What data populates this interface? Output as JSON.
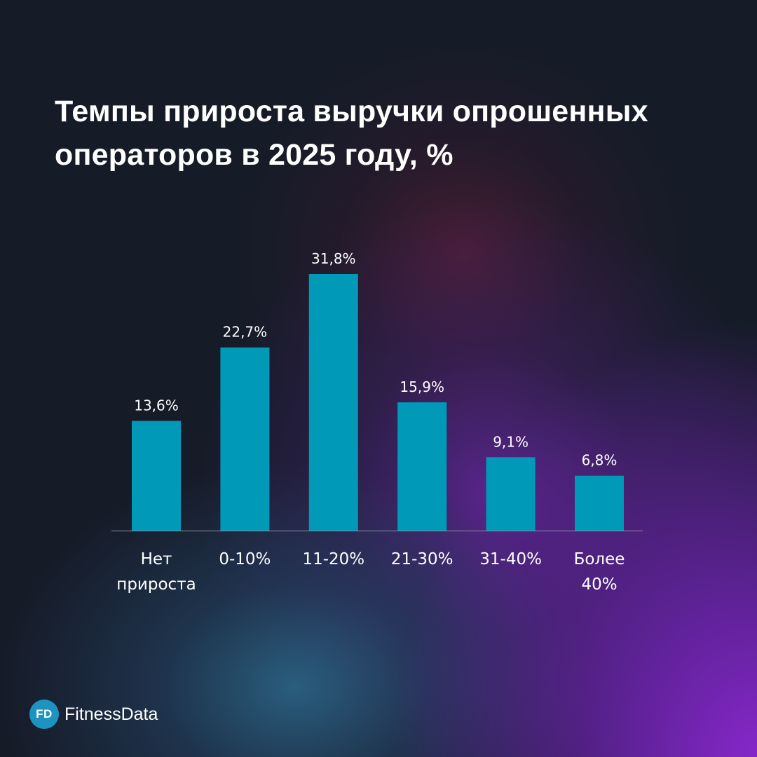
{
  "title_lines": [
    "Темпы прироста выручки опрошенных",
    "операторов в 2025 году, %"
  ],
  "chart_data": {
    "type": "bar",
    "title": "Темпы прироста выручки опрошенных операторов в 2025 году, %",
    "categories": [
      [
        "Нет",
        "прироста"
      ],
      [
        "0-10%"
      ],
      [
        "11-20%"
      ],
      [
        "21-30%"
      ],
      [
        "31-40%"
      ],
      [
        "Более",
        "40%"
      ]
    ],
    "values": [
      13.6,
      22.7,
      31.8,
      15.9,
      9.1,
      6.8
    ],
    "value_labels": [
      "13,6%",
      "22,7%",
      "31,8%",
      "15,9%",
      "9,1%",
      "6,8%"
    ],
    "xlabel": "",
    "ylabel": "",
    "ylim": [
      0,
      31.8
    ],
    "grid": false,
    "legend": "none",
    "bar_color": "#0099b8",
    "axis_color": "#8a8fa3"
  },
  "logo": {
    "badge": "FD",
    "name": "FitnessData"
  }
}
